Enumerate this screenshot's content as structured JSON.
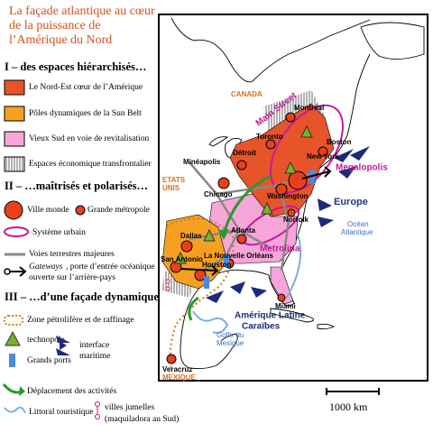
{
  "title": [
    "La façade atlantique au cœur",
    "de la puissance de",
    "l’Amérique du Nord"
  ],
  "legend": {
    "sections": [
      {
        "heading": "I – des espaces hiérarchisés…",
        "items": [
          "Le Nord-Est cœur de l’Amérique",
          "Pôles dynamiques de la Sun Belt",
          "Vieux Sud en voie de revitalisation",
          "Espaces économique transfrontalier"
        ]
      },
      {
        "heading": "II – …maîtrisés et polarisés…",
        "items": [
          "Ville monde",
          "Grande métropole",
          "Système urbain",
          "Voies terrestres majeures",
          [
            "Gateways",
            ", porte d’entrée océanique",
            "ouverte sur l’arrière-pays"
          ]
        ]
      },
      {
        "heading": "III – …d’une façade dynamique",
        "items": [
          "Zone pétrolifère et de raffinage",
          "technopole",
          "Grands ports",
          [
            "interface",
            "maritime"
          ],
          "Déplacement des activités",
          "Littoral touristique",
          [
            "villes jumelles",
            "(maquiladora au Sud)"
          ]
        ]
      }
    ]
  },
  "map_labels": {
    "canada": "CANADA",
    "main_street": "Main Street",
    "montreal": "Montréal",
    "toronto": "Toronto",
    "boston": "Boston",
    "new_york": "New York",
    "megalopolis": "Megalopolis",
    "mineapolis": "Minéapolis",
    "etats_unis": [
      "ETATS",
      "UNIS"
    ],
    "chicago": "Chicago",
    "detroit": "Détroit",
    "washington": "Washington",
    "norfolk": "Norfolk",
    "europe": "Europe",
    "ocean": [
      "Océan",
      "Atlantique"
    ],
    "atlanta": "Atlanta",
    "metrolina": "Metrolina",
    "dallas": "Dallas",
    "san_antonio": "San Antonio",
    "houston": "Houston",
    "nouvelle_orleans": "La Nouvelle Orléans",
    "miami": "Miami",
    "amerique_latine": [
      "Amérique Latine",
      "Caraïbes"
    ],
    "golfe": [
      "Golfe du",
      "Mexique"
    ],
    "veracruz": "Veracruz",
    "mexique": "MEXIQUE"
  },
  "scale": "1000 km"
}
